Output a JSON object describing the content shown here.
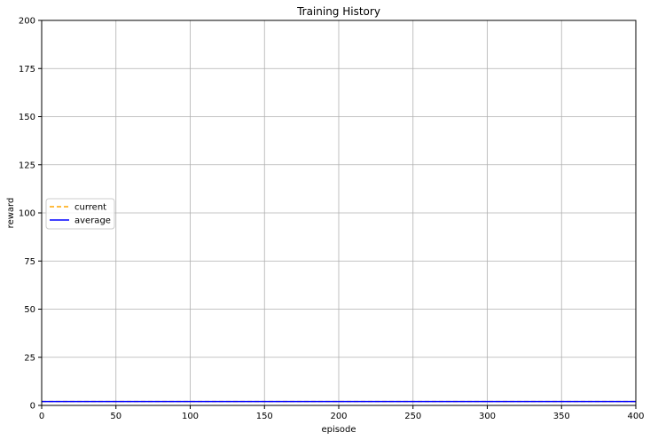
{
  "chart_data": {
    "type": "line",
    "title": "Training History",
    "xlabel": "episode",
    "ylabel": "reward",
    "xlim": [
      0,
      400
    ],
    "ylim": [
      0,
      200
    ],
    "xticks": [
      0,
      50,
      100,
      150,
      200,
      250,
      300,
      350,
      400
    ],
    "yticks": [
      0,
      25,
      50,
      75,
      100,
      125,
      150,
      175,
      200
    ],
    "grid": true,
    "legend_position": "center-left",
    "series": [
      {
        "name": "current",
        "color": "#ffa500",
        "style": "dashed",
        "x": [
          0,
          400
        ],
        "y": [
          2,
          2
        ]
      },
      {
        "name": "average",
        "color": "#0000ff",
        "style": "solid",
        "x": [
          0,
          400
        ],
        "y": [
          2,
          2
        ]
      }
    ]
  }
}
